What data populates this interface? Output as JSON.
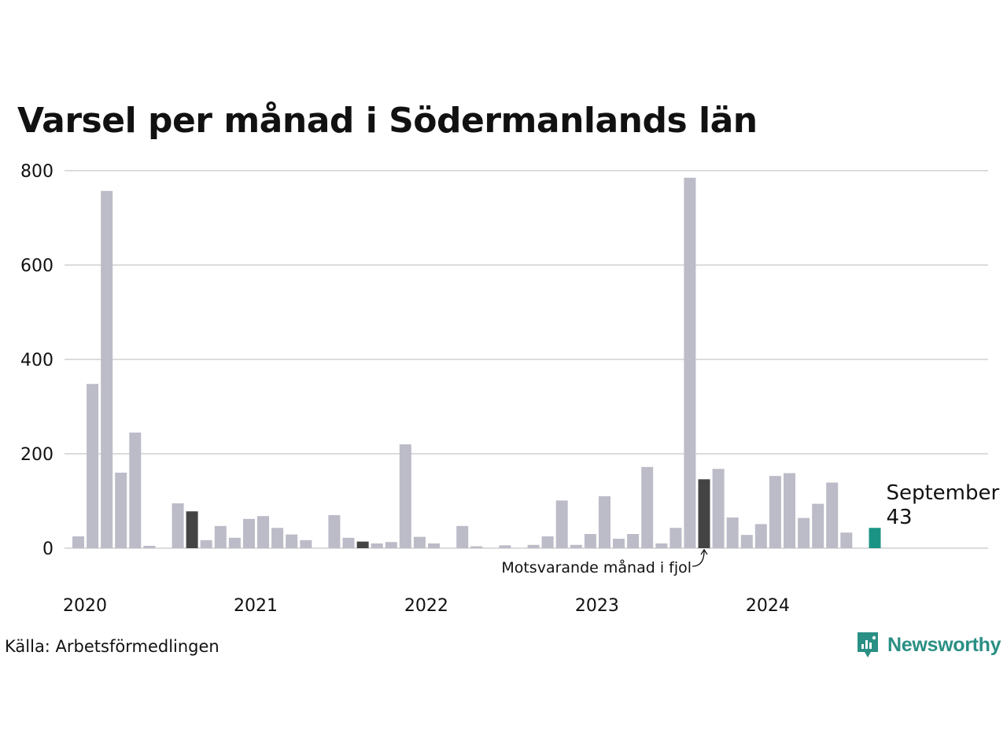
{
  "header": {
    "title": "Varsel per månad i Södermanlands län"
  },
  "footer": {
    "source": "Källa: Arbetsförmedlingen",
    "brand": "Newsworthy"
  },
  "colors": {
    "bar": "#bcbbc8",
    "bar_emphasis": "#444444",
    "bar_current": "#1b9384",
    "grid": "#dcdcdc",
    "brand": "#2a8f84"
  },
  "chart_data": {
    "type": "bar",
    "title": "Varsel per månad i Södermanlands län",
    "xlabel": "",
    "ylabel": "",
    "ylim": [
      0,
      800
    ],
    "yticks": [
      0,
      200,
      400,
      600,
      800
    ],
    "grid": true,
    "year_ticks": [
      {
        "label": "2020",
        "month_index": 0
      },
      {
        "label": "2021",
        "month_index": 12
      },
      {
        "label": "2022",
        "month_index": 24
      },
      {
        "label": "2023",
        "month_index": 36
      },
      {
        "label": "2024",
        "month_index": 48
      }
    ],
    "categories": [
      "2020-01",
      "2020-02",
      "2020-03",
      "2020-04",
      "2020-05",
      "2020-06",
      "2020-07",
      "2020-08",
      "2020-09",
      "2020-10",
      "2020-11",
      "2020-12",
      "2021-01",
      "2021-02",
      "2021-03",
      "2021-04",
      "2021-05",
      "2021-06",
      "2021-07",
      "2021-08",
      "2021-09",
      "2021-10",
      "2021-11",
      "2021-12",
      "2022-01",
      "2022-02",
      "2022-03",
      "2022-04",
      "2022-05",
      "2022-06",
      "2022-07",
      "2022-08",
      "2022-09",
      "2022-10",
      "2022-11",
      "2022-12",
      "2023-01",
      "2023-02",
      "2023-03",
      "2023-04",
      "2023-05",
      "2023-06",
      "2023-07",
      "2023-08",
      "2023-09",
      "2023-10",
      "2023-11",
      "2023-12",
      "2024-01",
      "2024-02",
      "2024-03",
      "2024-04",
      "2024-05",
      "2024-06",
      "2024-07",
      "2024-08",
      "2024-09"
    ],
    "values": [
      25,
      348,
      757,
      160,
      245,
      5,
      0,
      95,
      78,
      17,
      47,
      22,
      62,
      68,
      43,
      29,
      17,
      0,
      70,
      22,
      14,
      10,
      13,
      220,
      24,
      10,
      0,
      47,
      4,
      0,
      6,
      0,
      7,
      25,
      101,
      7,
      30,
      110,
      20,
      30,
      172,
      10,
      43,
      785,
      146,
      168,
      65,
      28,
      51,
      153,
      159,
      64,
      94,
      139,
      33,
      0,
      43
    ],
    "emphasis": [
      "2020-09",
      "2021-09",
      "2023-09"
    ],
    "current": "2024-09",
    "highlight": {
      "month": "September",
      "value": "43"
    },
    "annotation": "Motsvarande månad i fjol"
  }
}
